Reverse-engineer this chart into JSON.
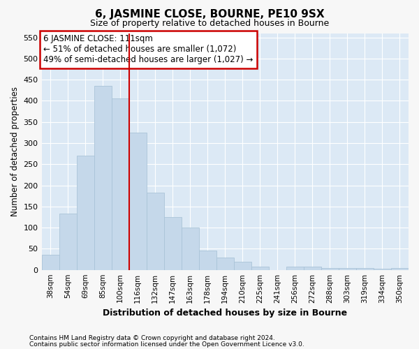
{
  "title": "6, JASMINE CLOSE, BOURNE, PE10 9SX",
  "subtitle": "Size of property relative to detached houses in Bourne",
  "xlabel": "Distribution of detached houses by size in Bourne",
  "ylabel": "Number of detached properties",
  "categories": [
    "38sqm",
    "54sqm",
    "69sqm",
    "85sqm",
    "100sqm",
    "116sqm",
    "132sqm",
    "147sqm",
    "163sqm",
    "178sqm",
    "194sqm",
    "210sqm",
    "225sqm",
    "241sqm",
    "256sqm",
    "272sqm",
    "288sqm",
    "303sqm",
    "319sqm",
    "334sqm",
    "350sqm"
  ],
  "values": [
    35,
    133,
    270,
    435,
    405,
    325,
    183,
    125,
    100,
    45,
    30,
    20,
    8,
    0,
    8,
    8,
    5,
    5,
    5,
    3,
    5
  ],
  "bar_color": "#c5d8ea",
  "bar_edge_color": "#aac4d8",
  "bg_color": "#dce9f5",
  "fig_color": "#f7f7f7",
  "grid_color": "#ffffff",
  "red_line_x": 4.5,
  "annotation_line1": "6 JASMINE CLOSE: 111sqm",
  "annotation_line2": "← 51% of detached houses are smaller (1,072)",
  "annotation_line3": "49% of semi-detached houses are larger (1,027) →",
  "annotation_box_facecolor": "#ffffff",
  "annotation_box_edgecolor": "#cc0000",
  "footnote1": "Contains HM Land Registry data © Crown copyright and database right 2024.",
  "footnote2": "Contains public sector information licensed under the Open Government Licence v3.0.",
  "ylim": [
    0,
    560
  ],
  "yticks": [
    0,
    50,
    100,
    150,
    200,
    250,
    300,
    350,
    400,
    450,
    500,
    550
  ],
  "title_fontsize": 11,
  "subtitle_fontsize": 9,
  "ylabel_fontsize": 8.5,
  "xlabel_fontsize": 9,
  "tick_fontsize": 8,
  "xtick_fontsize": 7.5,
  "footnote_fontsize": 6.5,
  "annot_fontsize": 8.5
}
